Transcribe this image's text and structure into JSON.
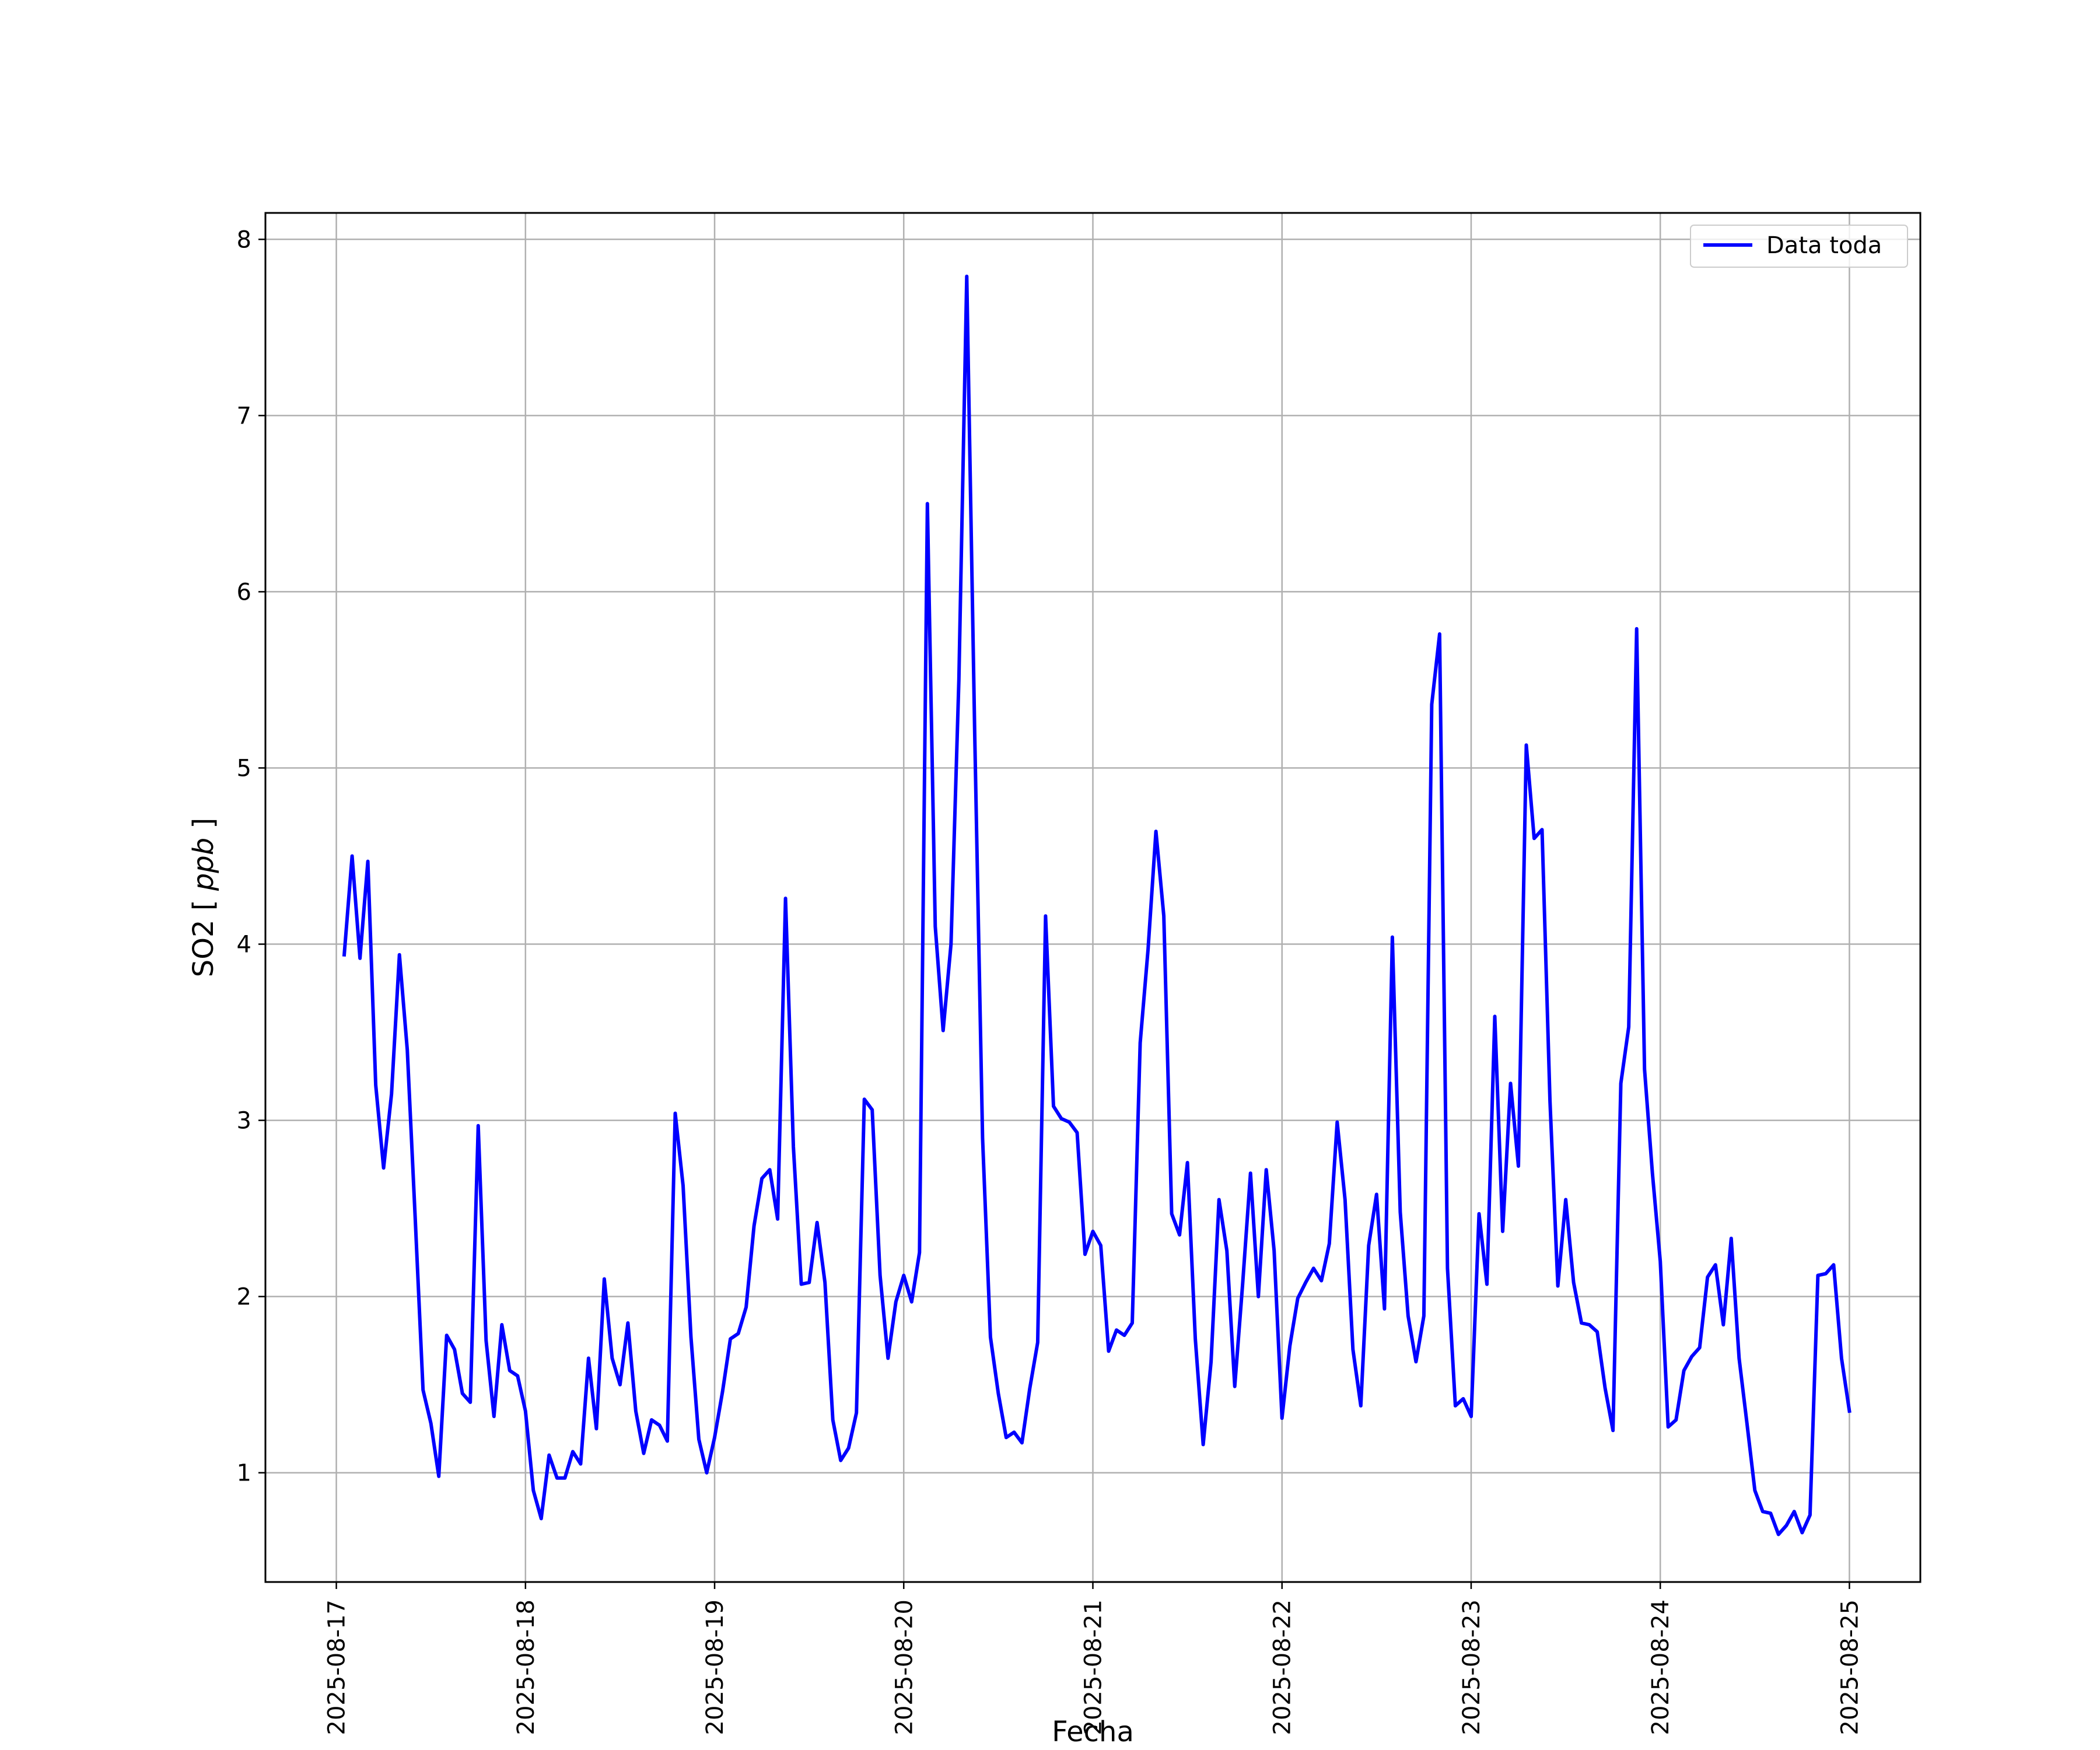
{
  "chart_data": {
    "type": "line",
    "xlabel": "Fecha",
    "ylabel": "SO2",
    "ylabel_unit": "ppb",
    "grid": true,
    "legend_position": "upper right",
    "ylim": [
      0.38,
      8.15
    ],
    "xlim": [
      "2025-08-16T15:00",
      "2025-08-25T09:00"
    ],
    "y_ticks": [
      "1",
      "2",
      "3",
      "4",
      "5",
      "6",
      "7",
      "8"
    ],
    "x_ticks": [
      "2025-08-17",
      "2025-08-18",
      "2025-08-19",
      "2025-08-20",
      "2025-08-21",
      "2025-08-22",
      "2025-08-23",
      "2025-08-24",
      "2025-08-25"
    ],
    "series": [
      {
        "name": "Data toda",
        "color": "#0000ff",
        "x": [
          "2025-08-17T01:00",
          "2025-08-17T02:00",
          "2025-08-17T03:00",
          "2025-08-17T04:00",
          "2025-08-17T05:00",
          "2025-08-17T06:00",
          "2025-08-17T07:00",
          "2025-08-17T08:00",
          "2025-08-17T09:00",
          "2025-08-17T10:00",
          "2025-08-17T11:00",
          "2025-08-17T12:00",
          "2025-08-17T13:00",
          "2025-08-17T14:00",
          "2025-08-17T15:00",
          "2025-08-17T16:00",
          "2025-08-17T17:00",
          "2025-08-17T18:00",
          "2025-08-17T19:00",
          "2025-08-17T20:00",
          "2025-08-17T21:00",
          "2025-08-17T22:00",
          "2025-08-17T23:00",
          "2025-08-18T00:00",
          "2025-08-18T01:00",
          "2025-08-18T02:00",
          "2025-08-18T03:00",
          "2025-08-18T04:00",
          "2025-08-18T05:00",
          "2025-08-18T06:00",
          "2025-08-18T07:00",
          "2025-08-18T08:00",
          "2025-08-18T09:00",
          "2025-08-18T10:00",
          "2025-08-18T11:00",
          "2025-08-18T12:00",
          "2025-08-18T13:00",
          "2025-08-18T14:00",
          "2025-08-18T15:00",
          "2025-08-18T16:00",
          "2025-08-18T17:00",
          "2025-08-18T18:00",
          "2025-08-18T19:00",
          "2025-08-18T20:00",
          "2025-08-18T21:00",
          "2025-08-18T22:00",
          "2025-08-18T23:00",
          "2025-08-19T00:00",
          "2025-08-19T01:00",
          "2025-08-19T02:00",
          "2025-08-19T03:00",
          "2025-08-19T04:00",
          "2025-08-19T05:00",
          "2025-08-19T06:00",
          "2025-08-19T07:00",
          "2025-08-19T08:00",
          "2025-08-19T09:00",
          "2025-08-19T10:00",
          "2025-08-19T11:00",
          "2025-08-19T12:00",
          "2025-08-19T13:00",
          "2025-08-19T14:00",
          "2025-08-19T15:00",
          "2025-08-19T16:00",
          "2025-08-19T17:00",
          "2025-08-19T18:00",
          "2025-08-19T19:00",
          "2025-08-19T20:00",
          "2025-08-19T21:00",
          "2025-08-19T22:00",
          "2025-08-19T23:00",
          "2025-08-20T00:00",
          "2025-08-20T01:00",
          "2025-08-20T02:00",
          "2025-08-20T03:00",
          "2025-08-20T04:00",
          "2025-08-20T05:00",
          "2025-08-20T06:00",
          "2025-08-20T07:00",
          "2025-08-20T08:00",
          "2025-08-20T09:00",
          "2025-08-20T10:00",
          "2025-08-20T11:00",
          "2025-08-20T12:00",
          "2025-08-20T13:00",
          "2025-08-20T14:00",
          "2025-08-20T15:00",
          "2025-08-20T16:00",
          "2025-08-20T17:00",
          "2025-08-20T18:00",
          "2025-08-20T19:00",
          "2025-08-20T20:00",
          "2025-08-20T21:00",
          "2025-08-20T22:00",
          "2025-08-20T23:00",
          "2025-08-21T00:00",
          "2025-08-21T01:00",
          "2025-08-21T02:00",
          "2025-08-21T03:00",
          "2025-08-21T04:00",
          "2025-08-21T05:00",
          "2025-08-21T06:00",
          "2025-08-21T07:00",
          "2025-08-21T08:00",
          "2025-08-21T09:00",
          "2025-08-21T10:00",
          "2025-08-21T11:00",
          "2025-08-21T12:00",
          "2025-08-21T13:00",
          "2025-08-21T14:00",
          "2025-08-21T15:00",
          "2025-08-21T16:00",
          "2025-08-21T17:00",
          "2025-08-21T18:00",
          "2025-08-21T19:00",
          "2025-08-21T20:00",
          "2025-08-21T21:00",
          "2025-08-21T22:00",
          "2025-08-21T23:00",
          "2025-08-22T00:00",
          "2025-08-22T01:00",
          "2025-08-22T02:00",
          "2025-08-22T03:00",
          "2025-08-22T04:00",
          "2025-08-22T05:00",
          "2025-08-22T06:00",
          "2025-08-22T07:00",
          "2025-08-22T08:00",
          "2025-08-22T09:00",
          "2025-08-22T10:00",
          "2025-08-22T11:00",
          "2025-08-22T12:00",
          "2025-08-22T13:00",
          "2025-08-22T14:00",
          "2025-08-22T15:00",
          "2025-08-22T16:00",
          "2025-08-22T17:00",
          "2025-08-22T18:00",
          "2025-08-22T19:00",
          "2025-08-22T20:00",
          "2025-08-22T21:00",
          "2025-08-22T22:00",
          "2025-08-22T23:00",
          "2025-08-23T00:00",
          "2025-08-23T01:00",
          "2025-08-23T02:00",
          "2025-08-23T03:00",
          "2025-08-23T04:00",
          "2025-08-23T05:00",
          "2025-08-23T06:00",
          "2025-08-23T07:00",
          "2025-08-23T08:00",
          "2025-08-23T09:00",
          "2025-08-23T10:00",
          "2025-08-23T11:00",
          "2025-08-23T12:00",
          "2025-08-23T13:00",
          "2025-08-23T14:00",
          "2025-08-23T15:00",
          "2025-08-23T16:00",
          "2025-08-23T17:00",
          "2025-08-23T18:00",
          "2025-08-23T19:00",
          "2025-08-23T20:00",
          "2025-08-23T21:00",
          "2025-08-23T22:00",
          "2025-08-23T23:00",
          "2025-08-24T00:00",
          "2025-08-24T01:00",
          "2025-08-24T02:00",
          "2025-08-24T03:00",
          "2025-08-24T04:00",
          "2025-08-24T05:00",
          "2025-08-24T06:00",
          "2025-08-24T07:00",
          "2025-08-24T08:00",
          "2025-08-24T09:00",
          "2025-08-24T10:00",
          "2025-08-24T11:00",
          "2025-08-24T12:00",
          "2025-08-24T13:00",
          "2025-08-24T14:00",
          "2025-08-24T15:00",
          "2025-08-24T16:00",
          "2025-08-24T17:00",
          "2025-08-24T18:00",
          "2025-08-24T19:00",
          "2025-08-24T20:00",
          "2025-08-24T21:00",
          "2025-08-24T22:00",
          "2025-08-24T23:00",
          "2025-08-25T00:00"
        ],
        "values": [
          3.94,
          4.5,
          3.92,
          4.47,
          3.2,
          2.73,
          3.15,
          3.94,
          3.4,
          2.45,
          1.47,
          1.28,
          0.98,
          1.78,
          1.7,
          1.45,
          1.4,
          2.97,
          1.75,
          1.32,
          1.84,
          1.58,
          1.55,
          1.35,
          0.9,
          0.74,
          1.1,
          0.97,
          0.97,
          1.12,
          1.05,
          1.65,
          1.25,
          2.1,
          1.65,
          1.5,
          1.85,
          1.35,
          1.11,
          1.3,
          1.27,
          1.18,
          3.04,
          2.63,
          1.77,
          1.19,
          1.0,
          1.2,
          1.46,
          1.76,
          1.79,
          1.94,
          2.4,
          2.67,
          2.72,
          2.44,
          4.26,
          2.85,
          2.07,
          2.08,
          2.42,
          2.08,
          1.3,
          1.07,
          1.14,
          1.34,
          3.12,
          3.06,
          2.12,
          1.65,
          1.97,
          2.12,
          1.97,
          2.25,
          6.5,
          4.1,
          3.51,
          4.0,
          5.5,
          7.79,
          5.2,
          2.9,
          1.77,
          1.45,
          1.2,
          1.23,
          1.17,
          1.48,
          1.74,
          4.16,
          3.08,
          3.01,
          2.99,
          2.93,
          2.24,
          2.37,
          2.29,
          1.69,
          1.81,
          1.78,
          1.85,
          3.44,
          3.97,
          4.64,
          4.16,
          2.47,
          2.35,
          2.76,
          1.76,
          1.16,
          1.63,
          2.55,
          2.26,
          1.49,
          2.07,
          2.7,
          2.0,
          2.72,
          2.26,
          1.31,
          1.72,
          1.99,
          2.08,
          2.16,
          2.09,
          2.3,
          2.99,
          2.55,
          1.7,
          1.38,
          2.29,
          2.58,
          1.93,
          4.04,
          2.48,
          1.89,
          1.63,
          1.89,
          5.36,
          5.76,
          2.16,
          1.38,
          1.42,
          1.32,
          2.47,
          2.07,
          3.59,
          2.37,
          3.21,
          2.74,
          5.13,
          4.6,
          4.65,
          3.11,
          2.06,
          2.55,
          2.08,
          1.85,
          1.84,
          1.8,
          1.48,
          1.24,
          3.21,
          3.53,
          5.79,
          3.29,
          2.7,
          2.2,
          1.26,
          1.3,
          1.58,
          1.66,
          1.71,
          2.11,
          2.18,
          1.84,
          2.33,
          1.65,
          1.28,
          0.9,
          0.78,
          0.77,
          0.65,
          0.7,
          0.78,
          0.66,
          0.76,
          2.12,
          2.13,
          2.18,
          1.65,
          1.35
        ]
      }
    ]
  }
}
